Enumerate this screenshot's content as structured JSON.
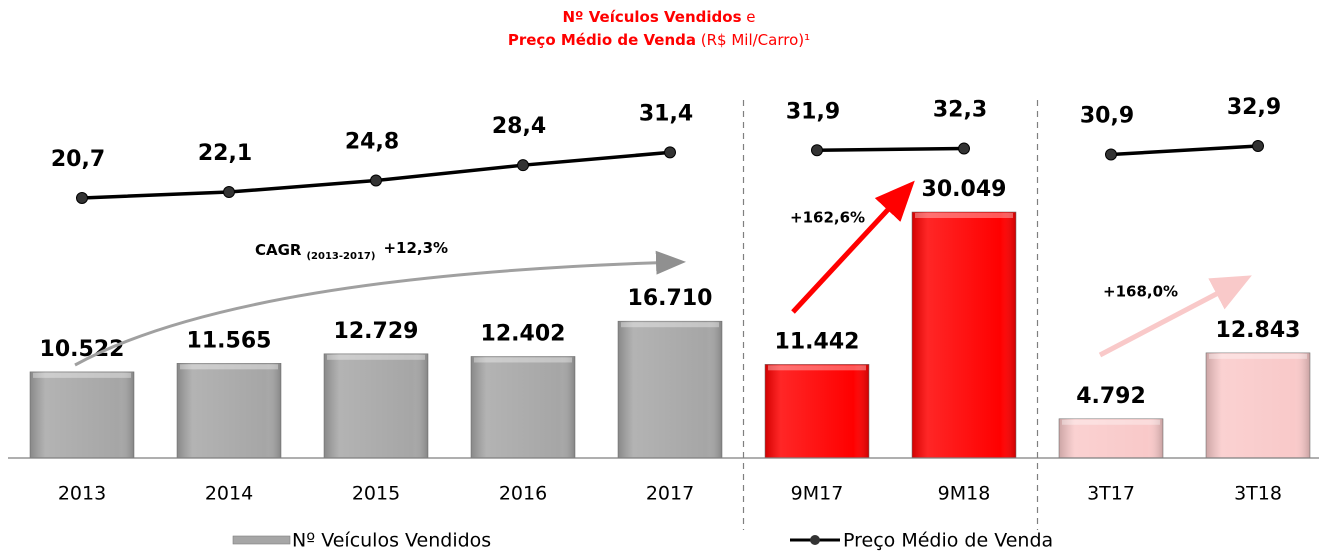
{
  "chart_data": {
    "type": "bar_line",
    "title_lines": [
      [
        {
          "text": "Nº Veículos Vendidos",
          "bold": true
        },
        {
          "text": " e",
          "bold": false
        }
      ],
      [
        {
          "text": "Preço Médio de Venda",
          "bold": true
        },
        {
          "text": " (R$ Mil/Carro)¹",
          "bold": false
        }
      ]
    ],
    "title_color": "#ff0000",
    "categories": [
      "2013",
      "2014",
      "2015",
      "2016",
      "2017",
      "9M17",
      "9M18",
      "3T17",
      "3T18"
    ],
    "series": [
      {
        "name": "Nº Veículos Vendidos",
        "type": "bar",
        "values": [
          10522,
          11565,
          12729,
          12402,
          16710,
          11442,
          30049,
          4792,
          12843
        ],
        "value_labels": [
          "10.522",
          "11.565",
          "12.729",
          "12.402",
          "16.710",
          "11.442",
          "30.049",
          "4.792",
          "12.843"
        ],
        "colors": [
          "#a6a6a6",
          "#a6a6a6",
          "#a6a6a6",
          "#a6a6a6",
          "#a6a6a6",
          "#ff0000",
          "#ff0000",
          "#f9c9c9",
          "#f9c9c9"
        ]
      },
      {
        "name": "Preço Médio de Venda",
        "type": "line",
        "color": "#000000",
        "values": [
          20.7,
          22.1,
          24.8,
          28.4,
          31.4,
          31.9,
          32.3,
          30.9,
          32.9
        ],
        "value_labels": [
          "20,7",
          "22,1",
          "24,8",
          "28,4",
          "31,4",
          "31,9",
          "32,3",
          "30,9",
          "32,9"
        ]
      }
    ],
    "annotations": {
      "cagr": "CAGR",
      "cagr_period": "(2013-2017)",
      "cagr_value": "+12,3%",
      "growth_9m": "+162,6%",
      "growth_3t": "+168,0%"
    }
  }
}
